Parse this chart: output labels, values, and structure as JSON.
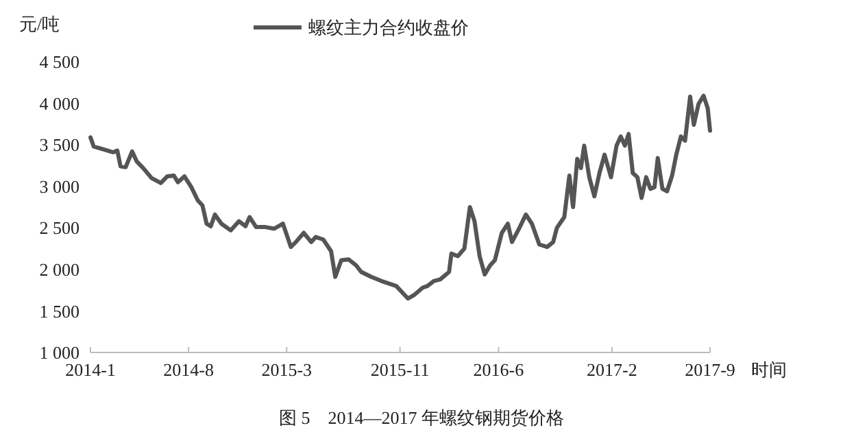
{
  "chart_data": {
    "type": "line",
    "ylabel": "元/吨",
    "xlabel": "时间",
    "annotations": [
      "图 5　2014—2017 年螺纹钢期货价格"
    ],
    "legend": "top",
    "grid": false,
    "line_style": "solid",
    "marker": "none",
    "xlim": [
      "2014-01-01",
      "2017-09-01"
    ],
    "xticks": [
      {
        "value": "2014-01-01",
        "label": "2014-1"
      },
      {
        "value": "2014-08-01",
        "label": "2014-8"
      },
      {
        "value": "2015-03-01",
        "label": "2015-3"
      },
      {
        "value": "2015-11-01",
        "label": "2015-11"
      },
      {
        "value": "2016-06-01",
        "label": "2016-6"
      },
      {
        "value": "2017-02-01",
        "label": "2017-2"
      },
      {
        "value": "2017-09-01",
        "label": "2017-9"
      }
    ],
    "ylim": [
      1000,
      4500
    ],
    "yticks": [
      {
        "value": 1000,
        "label": "1 000"
      },
      {
        "value": 1500,
        "label": "1 500"
      },
      {
        "value": 2000,
        "label": "2 000"
      },
      {
        "value": 2500,
        "label": "2 500"
      },
      {
        "value": 3000,
        "label": "3 000"
      },
      {
        "value": 3500,
        "label": "3 500"
      },
      {
        "value": 4000,
        "label": "4 000"
      },
      {
        "value": 4500,
        "label": "4 500"
      }
    ],
    "x": [
      "2014-01-01",
      "2014-01-08",
      "2014-02-01",
      "2014-02-19",
      "2014-02-28",
      "2014-03-07",
      "2014-03-18",
      "2014-04-01",
      "2014-04-11",
      "2014-04-25",
      "2014-05-13",
      "2014-06-02",
      "2014-06-16",
      "2014-06-30",
      "2014-07-09",
      "2014-07-23",
      "2014-08-07",
      "2014-08-21",
      "2014-08-31",
      "2014-09-09",
      "2014-09-18",
      "2014-09-27",
      "2014-10-11",
      "2014-10-31",
      "2014-11-18",
      "2014-12-02",
      "2014-12-11",
      "2014-12-25",
      "2015-01-14",
      "2015-02-02",
      "2015-02-21",
      "2015-03-10",
      "2015-03-21",
      "2015-04-07",
      "2015-04-23",
      "2015-05-03",
      "2015-05-19",
      "2015-06-05",
      "2015-06-14",
      "2015-06-27",
      "2015-07-13",
      "2015-07-29",
      "2015-08-09",
      "2015-08-31",
      "2015-09-22",
      "2015-10-24",
      "2015-11-18",
      "2015-12-01",
      "2015-12-20",
      "2015-12-30",
      "2016-01-13",
      "2016-01-27",
      "2016-02-15",
      "2016-02-20",
      "2016-03-05",
      "2016-03-19",
      "2016-03-31",
      "2016-04-10",
      "2016-04-21",
      "2016-05-02",
      "2016-05-14",
      "2016-05-24",
      "2016-06-08",
      "2016-06-21",
      "2016-06-30",
      "2016-07-16",
      "2016-07-30",
      "2016-08-12",
      "2016-08-28",
      "2016-09-14",
      "2016-09-27",
      "2016-10-05",
      "2016-10-21",
      "2016-11-01",
      "2016-11-09",
      "2016-11-18",
      "2016-11-26",
      "2016-12-03",
      "2016-12-14",
      "2016-12-25",
      "2017-01-05",
      "2017-01-16",
      "2017-01-30",
      "2017-02-11",
      "2017-02-20",
      "2017-03-01",
      "2017-03-09",
      "2017-03-18",
      "2017-03-28",
      "2017-04-06",
      "2017-04-16",
      "2017-04-25",
      "2017-05-04",
      "2017-05-11",
      "2017-05-21",
      "2017-05-31",
      "2017-06-11",
      "2017-06-20",
      "2017-06-30",
      "2017-07-09",
      "2017-07-20",
      "2017-07-28",
      "2017-08-07",
      "2017-08-18",
      "2017-08-27",
      "2017-09-01"
    ],
    "series": [
      {
        "name": "螺纹主力合约收盘价",
        "color": "#555555",
        "values": [
          3590,
          3480,
          3440,
          3410,
          3430,
          3240,
          3230,
          3420,
          3300,
          3220,
          3100,
          3040,
          3120,
          3130,
          3050,
          3120,
          2990,
          2830,
          2770,
          2550,
          2520,
          2660,
          2550,
          2470,
          2580,
          2520,
          2630,
          2510,
          2510,
          2490,
          2550,
          2270,
          2330,
          2440,
          2330,
          2390,
          2360,
          2220,
          1910,
          2110,
          2120,
          2050,
          1970,
          1910,
          1860,
          1800,
          1650,
          1690,
          1780,
          1800,
          1860,
          1880,
          1970,
          2190,
          2160,
          2250,
          2750,
          2580,
          2160,
          1940,
          2050,
          2110,
          2440,
          2550,
          2330,
          2500,
          2660,
          2550,
          2300,
          2270,
          2330,
          2500,
          2630,
          3130,
          2750,
          3330,
          3220,
          3490,
          3110,
          2880,
          3160,
          3380,
          3110,
          3490,
          3600,
          3490,
          3630,
          3160,
          3110,
          2860,
          3110,
          2970,
          2990,
          3340,
          2970,
          2940,
          3130,
          3380,
          3600,
          3550,
          4080,
          3740,
          3990,
          4090,
          3940,
          3670
        ]
      }
    ]
  }
}
